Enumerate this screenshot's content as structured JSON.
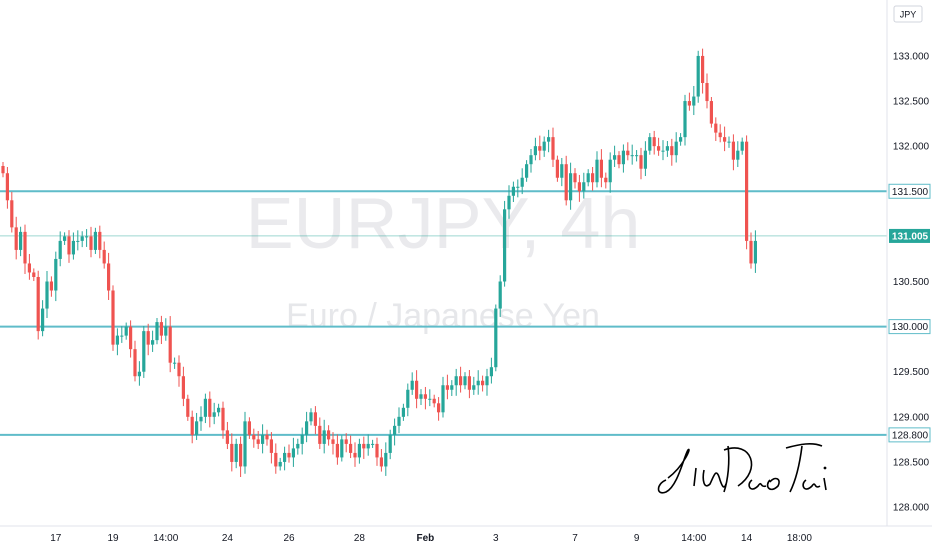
{
  "chart_data": {
    "type": "candlestick",
    "watermark_symbol": "EURJPY, 4h",
    "watermark_name": "Euro / Japanese Yen",
    "currency": "JPY",
    "signature": "Jin Dao Tai",
    "y_range": [
      127.79,
      133.62
    ],
    "y_ticks": [
      "128.000",
      "128.500",
      "129.000",
      "129.500",
      "130.500",
      "132.000",
      "132.500",
      "133.000"
    ],
    "x_ticks": [
      {
        "label": "17",
        "bar": 12
      },
      {
        "label": "19",
        "bar": 25
      },
      {
        "label": "14:00",
        "bar": 37
      },
      {
        "label": "24",
        "bar": 51
      },
      {
        "label": "26",
        "bar": 65
      },
      {
        "label": "28",
        "bar": 81
      },
      {
        "label": "Feb",
        "bar": 96,
        "bold": true
      },
      {
        "label": "3",
        "bar": 112
      },
      {
        "label": "7",
        "bar": 130
      },
      {
        "label": "9",
        "bar": 144
      },
      {
        "label": "14:00",
        "bar": 157
      },
      {
        "label": "14",
        "bar": 169
      },
      {
        "label": "18:00",
        "bar": 181
      }
    ],
    "levels": [
      {
        "value": 131.5,
        "label": "131.500",
        "color": "#5fbcc9"
      },
      {
        "value": 130.0,
        "label": "130.000",
        "color": "#5fbcc9"
      },
      {
        "value": 128.8,
        "label": "128.800",
        "color": "#5fbcc9"
      }
    ],
    "last_price": {
      "value": 131.005,
      "label": "131.005",
      "color": "#26a69a"
    },
    "up_color": "#26a69a",
    "down_color": "#ef5350",
    "candles_close": [
      131.7,
      131.4,
      131.1,
      130.85,
      131.05,
      130.7,
      130.6,
      130.55,
      129.95,
      130.2,
      130.5,
      130.4,
      130.75,
      130.95,
      131.0,
      130.8,
      130.95,
      130.95,
      131.0,
      131.0,
      130.85,
      131.05,
      130.85,
      130.7,
      130.4,
      129.8,
      129.9,
      129.9,
      130.0,
      129.75,
      129.45,
      129.5,
      129.95,
      129.8,
      129.85,
      130.05,
      129.9,
      130.0,
      129.6,
      129.6,
      129.45,
      129.2,
      129.0,
      128.8,
      128.95,
      129.0,
      129.2,
      129.0,
      129.05,
      129.1,
      128.85,
      128.7,
      128.5,
      128.7,
      128.45,
      128.95,
      128.8,
      128.75,
      128.7,
      128.8,
      128.75,
      128.6,
      128.45,
      128.5,
      128.6,
      128.55,
      128.65,
      128.7,
      128.8,
      128.95,
      129.05,
      128.9,
      128.7,
      128.85,
      128.75,
      128.7,
      128.55,
      128.75,
      128.7,
      128.6,
      128.55,
      128.7,
      128.65,
      128.7,
      128.7,
      128.55,
      128.45,
      128.6,
      128.8,
      128.9,
      129.0,
      129.1,
      129.3,
      129.4,
      129.2,
      129.25,
      129.2,
      129.2,
      129.15,
      129.05,
      129.35,
      129.3,
      129.35,
      129.45,
      129.35,
      129.45,
      129.3,
      129.35,
      129.4,
      129.35,
      129.45,
      129.55,
      130.2,
      130.5,
      131.3,
      131.45,
      131.55,
      131.55,
      131.65,
      131.8,
      131.9,
      132.0,
      131.95,
      132.05,
      132.1,
      131.85,
      131.65,
      131.8,
      131.4,
      131.7,
      131.6,
      131.5,
      131.6,
      131.7,
      131.6,
      131.85,
      131.65,
      131.6,
      131.85,
      131.9,
      131.8,
      131.95,
      131.9,
      131.9,
      131.9,
      131.75,
      131.95,
      132.1,
      132.0,
      131.95,
      131.95,
      132.0,
      131.9,
      132.05,
      132.1,
      132.5,
      132.45,
      132.55,
      133.0,
      132.7,
      132.5,
      132.25,
      132.15,
      132.1,
      132.05,
      132.05,
      131.85,
      131.95,
      132.05,
      130.95,
      130.7,
      130.95
    ]
  }
}
